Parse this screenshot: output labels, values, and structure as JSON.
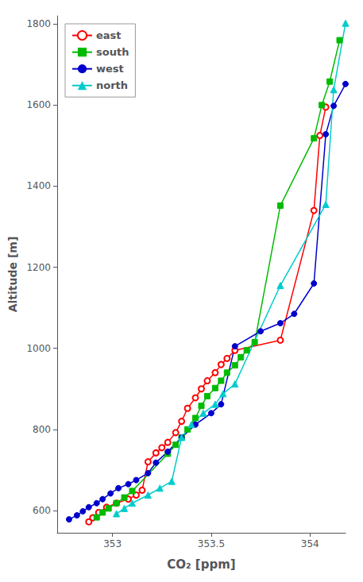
{
  "chart_data": {
    "type": "line",
    "xlabel": "CO₂ [ppm]",
    "ylabel": "Altitude [m]",
    "xlim": [
      352.72,
      354.18
    ],
    "ylim": [
      545,
      1820
    ],
    "xticks": [
      353,
      353.5,
      354
    ],
    "yticks": [
      600,
      800,
      1000,
      1200,
      1400,
      1600,
      1800
    ],
    "grid": false,
    "legend": "upper left",
    "series": [
      {
        "name": "east",
        "color": "#ff0000",
        "marker": "emptyCircle",
        "x": [
          352.88,
          352.9,
          352.93,
          352.97,
          353.02,
          353.08,
          353.12,
          353.15,
          353.18,
          353.22,
          353.25,
          353.28,
          353.32,
          353.35,
          353.38,
          353.42,
          353.45,
          353.48,
          353.52,
          353.55,
          353.58,
          353.62,
          353.85,
          354.02,
          354.05,
          354.08
        ],
        "values": [
          572,
          582,
          595,
          608,
          618,
          628,
          638,
          650,
          720,
          742,
          755,
          768,
          792,
          820,
          852,
          878,
          900,
          920,
          940,
          960,
          975,
          995,
          1020,
          1340,
          1525,
          1595
        ]
      },
      {
        "name": "south",
        "color": "#00bb00",
        "marker": "square",
        "x": [
          352.92,
          352.95,
          352.98,
          353.02,
          353.06,
          353.1,
          353.28,
          353.32,
          353.35,
          353.38,
          353.42,
          353.45,
          353.48,
          353.52,
          353.55,
          353.58,
          353.62,
          353.65,
          353.68,
          353.72,
          353.85,
          354.02,
          354.06,
          354.1,
          354.15
        ],
        "values": [
          583,
          595,
          605,
          618,
          632,
          648,
          740,
          762,
          780,
          800,
          828,
          858,
          882,
          902,
          920,
          940,
          958,
          978,
          995,
          1015,
          1352,
          1518,
          1600,
          1658,
          1760
        ]
      },
      {
        "name": "west",
        "color": "#0000cc",
        "marker": "circle",
        "x": [
          352.78,
          352.82,
          352.85,
          352.88,
          352.92,
          352.95,
          352.99,
          353.03,
          353.08,
          353.12,
          353.18,
          353.22,
          353.28,
          353.35,
          353.42,
          353.5,
          353.55,
          353.62,
          353.75,
          353.85,
          353.92,
          354.02,
          354.08,
          354.12,
          354.18
        ],
        "values": [
          578,
          588,
          598,
          608,
          618,
          628,
          642,
          655,
          665,
          675,
          692,
          718,
          745,
          780,
          812,
          840,
          862,
          1005,
          1042,
          1062,
          1085,
          1160,
          1528,
          1598,
          1652
        ]
      },
      {
        "name": "north",
        "color": "#00cccc",
        "marker": "triangle",
        "x": [
          353.02,
          353.06,
          353.1,
          353.18,
          353.24,
          353.3,
          353.35,
          353.4,
          353.46,
          353.52,
          353.56,
          353.62,
          353.85,
          354.08,
          354.12,
          354.18
        ],
        "values": [
          592,
          605,
          618,
          638,
          655,
          672,
          780,
          812,
          840,
          862,
          888,
          912,
          1155,
          1355,
          1638,
          1802
        ]
      }
    ]
  }
}
